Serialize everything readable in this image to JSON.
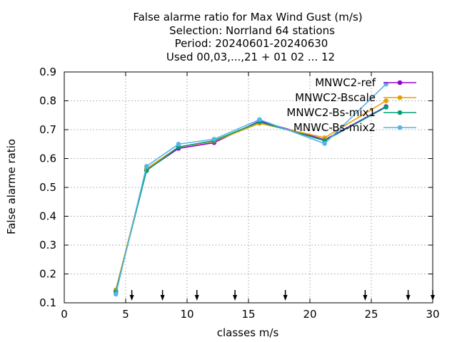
{
  "chart_data": {
    "type": "line",
    "title": [
      "False alarme ratio  for Max Wind Gust (m/s)",
      "Selection: Norrland     64 stations",
      "Period: 20240601-20240630",
      "Used 00,03,...,21 + 01 02 ... 12"
    ],
    "xlabel": "classes m/s",
    "ylabel": "False alarme ratio",
    "xlim": [
      0,
      30
    ],
    "ylim": [
      0.1,
      0.9
    ],
    "xticks": [
      0,
      5,
      10,
      15,
      20,
      25,
      30
    ],
    "yticks": [
      0.1,
      0.2,
      0.3,
      0.4,
      0.5,
      0.6,
      0.7,
      0.8,
      0.9
    ],
    "grid": true,
    "legend_position": "top-right",
    "class_markers": [
      5.5,
      8.0,
      10.8,
      13.9,
      18.0,
      24.5,
      28.0,
      30.0
    ],
    "series": [
      {
        "name": "MNWC2-ref",
        "color": "#9400d3",
        "marker": "circle",
        "x": [
          4.2,
          6.7,
          9.3,
          12.2,
          15.9,
          21.2,
          26.2
        ],
        "y": [
          0.14,
          0.56,
          0.635,
          0.655,
          0.73,
          0.665,
          0.78
        ]
      },
      {
        "name": "MNWC2-Bscale",
        "color": "#e69f00",
        "marker": "circle",
        "x": [
          4.2,
          6.7,
          9.3,
          12.2,
          15.9,
          21.2,
          26.2
        ],
        "y": [
          0.145,
          0.565,
          0.64,
          0.66,
          0.722,
          0.672,
          0.8
        ]
      },
      {
        "name": "MNWC2-Bs-mix1",
        "color": "#009e73",
        "marker": "circle",
        "x": [
          4.2,
          6.7,
          9.3,
          12.2,
          15.9,
          21.2,
          26.2
        ],
        "y": [
          0.138,
          0.558,
          0.64,
          0.662,
          0.727,
          0.662,
          0.778
        ]
      },
      {
        "name": "MNWC-Bs-mix2",
        "color": "#56b4e9",
        "marker": "circle",
        "x": [
          4.2,
          6.7,
          9.3,
          12.2,
          15.9,
          21.2,
          26.2
        ],
        "y": [
          0.13,
          0.573,
          0.65,
          0.667,
          0.735,
          0.652,
          0.858
        ]
      }
    ]
  }
}
